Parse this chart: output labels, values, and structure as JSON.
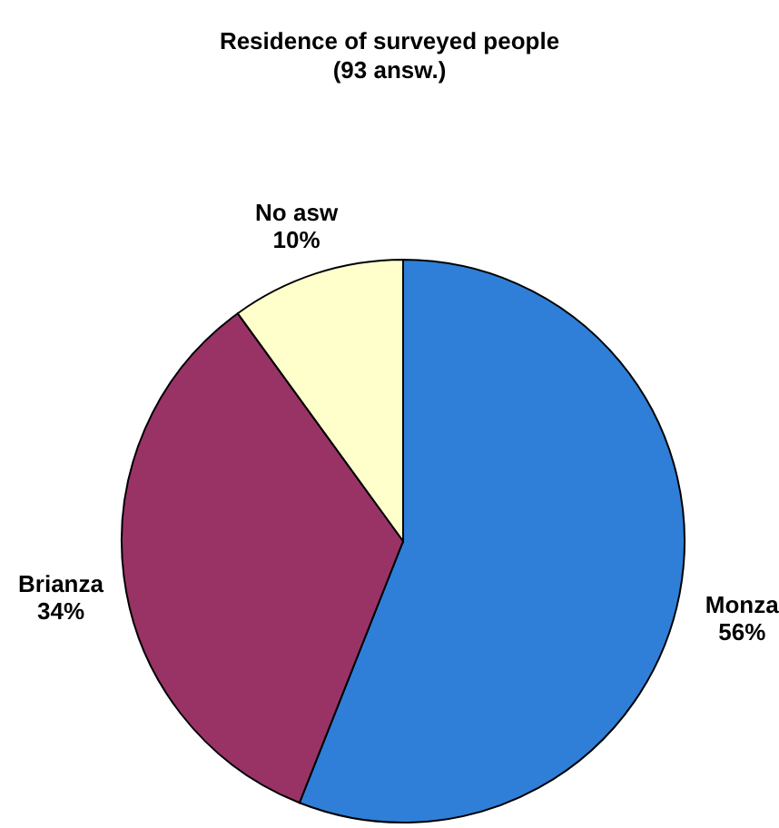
{
  "chart_data": {
    "type": "pie",
    "title": "Residence of surveyed people",
    "subtitle": "(93 answ.)",
    "categories": [
      "Monza",
      "Brianza",
      "No asw"
    ],
    "values": [
      56,
      34,
      10
    ],
    "value_labels": [
      "56%",
      "34%",
      "10%"
    ],
    "colors": [
      "#2f7fd8",
      "#993366",
      "#ffffcc"
    ],
    "legend": false
  }
}
